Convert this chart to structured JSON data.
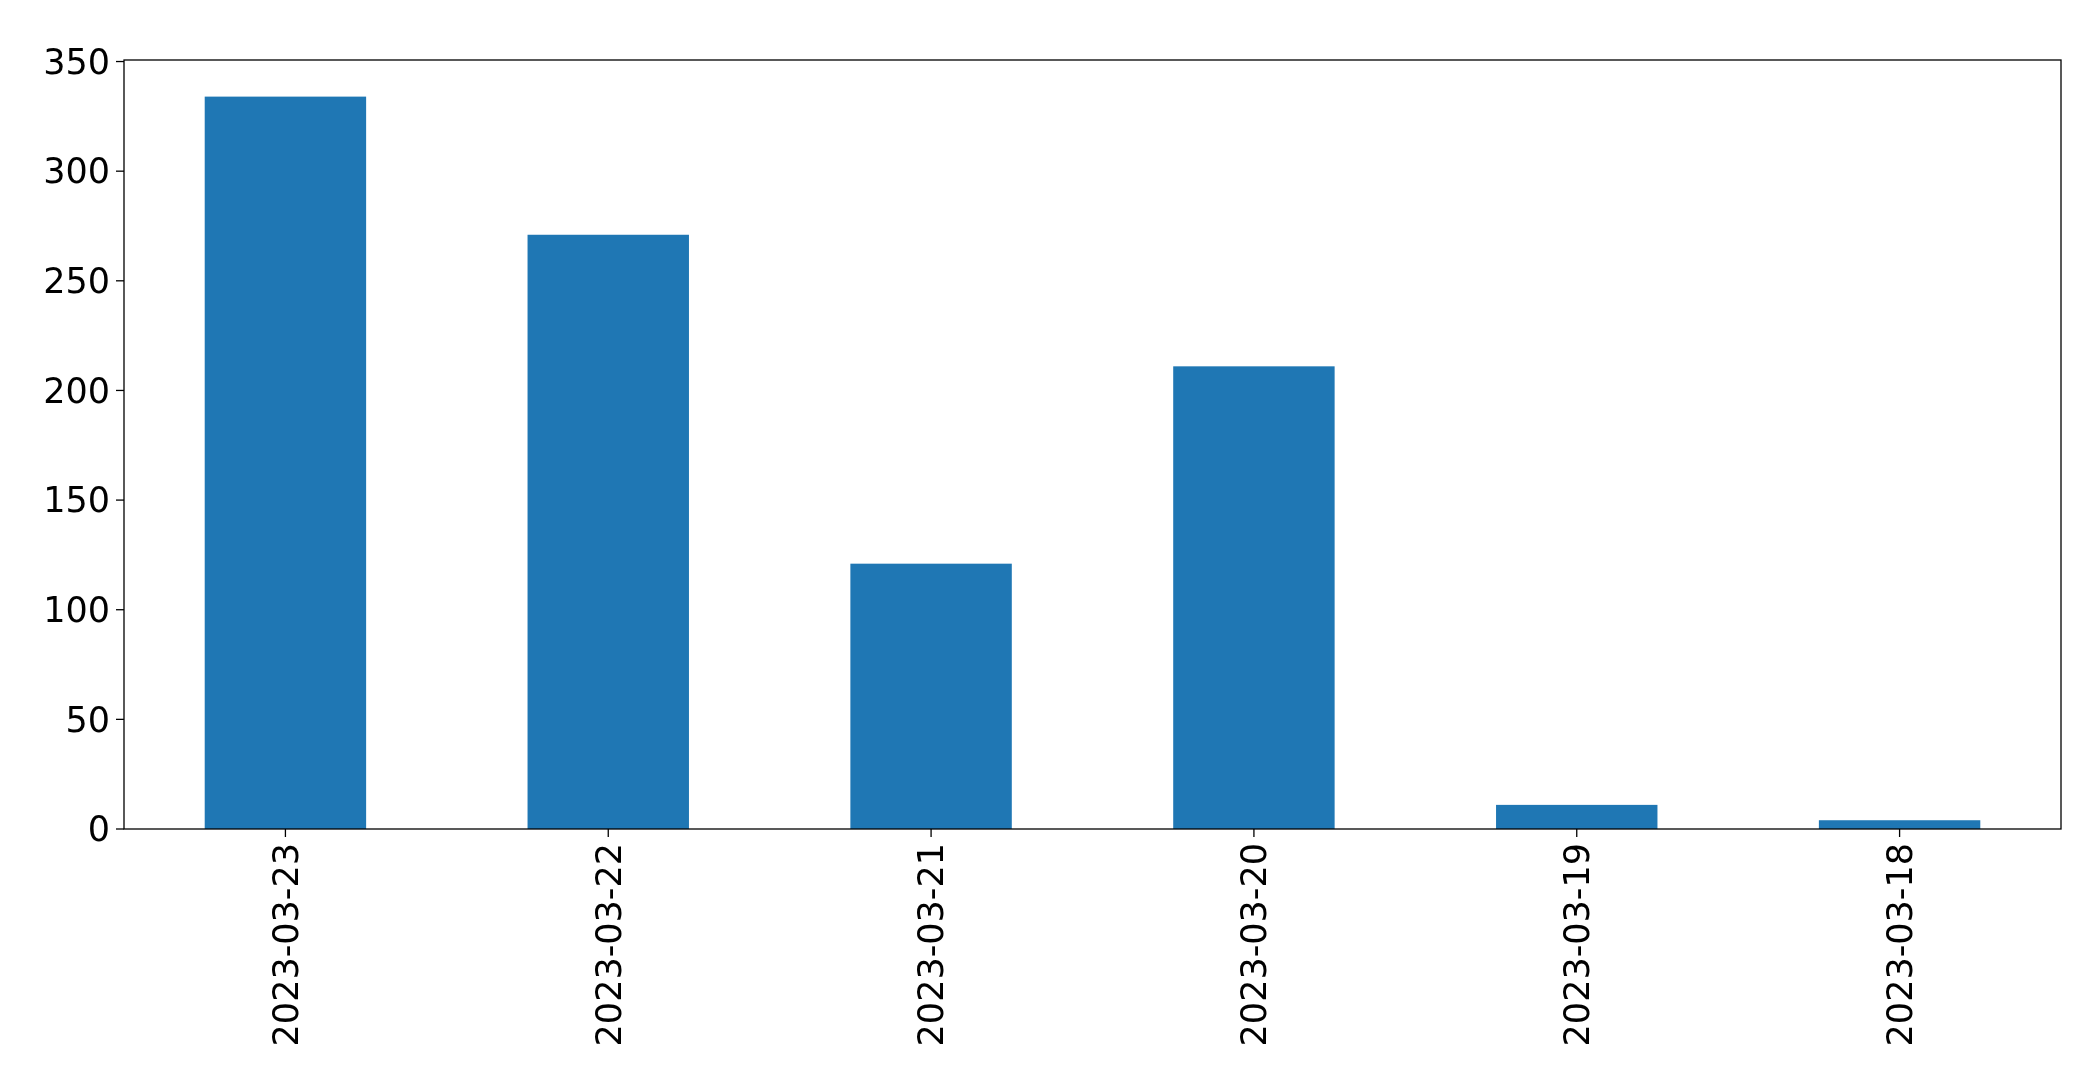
{
  "chart_data": {
    "type": "bar",
    "categories": [
      "2023-03-23",
      "2023-03-22",
      "2023-03-21",
      "2023-03-20",
      "2023-03-19",
      "2023-03-18"
    ],
    "values": [
      334,
      271,
      121,
      211,
      11,
      4
    ],
    "color": "#1f77b4",
    "ylim": [
      0,
      350.7
    ],
    "yticks": [
      0,
      50,
      100,
      150,
      200,
      250,
      300,
      350
    ],
    "grid": false
  }
}
